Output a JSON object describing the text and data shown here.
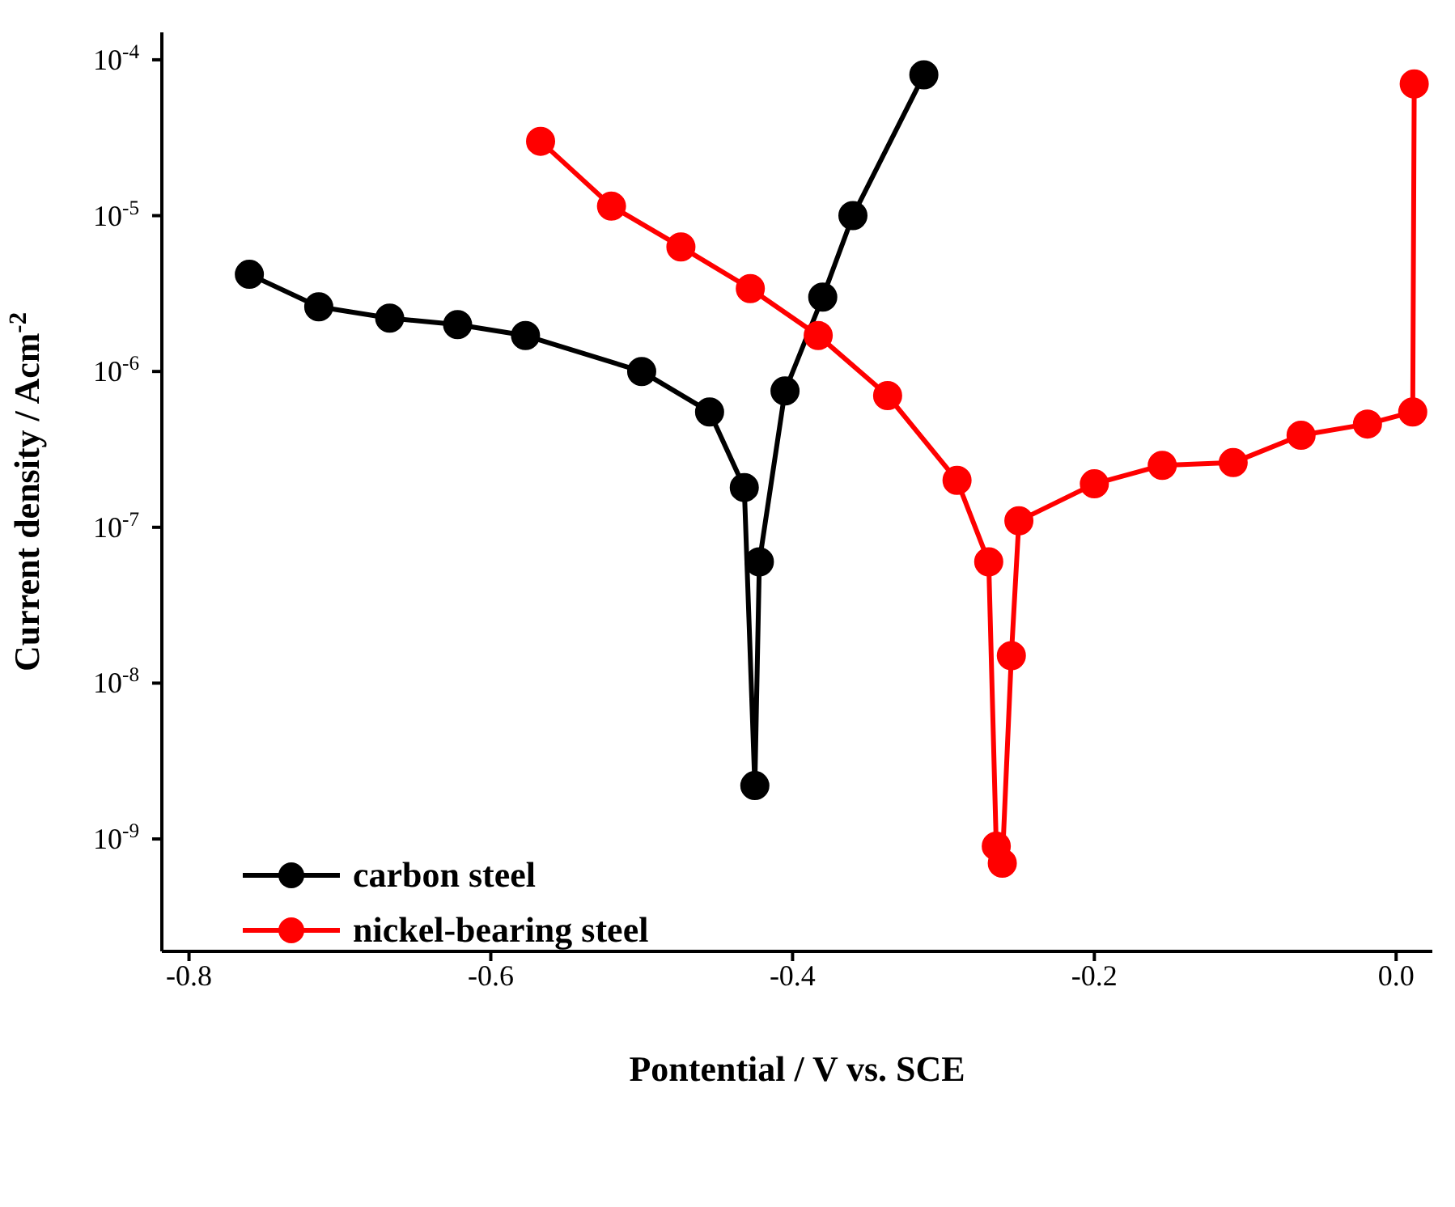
{
  "chart_data": {
    "type": "line",
    "xlabel": "Pontential / V vs. SCE",
    "ylabel": "Current density / Acm$^{-2}$",
    "log": "y",
    "marker": "circle",
    "legend": "bottom left",
    "xlim": [
      -0.818,
      0.024
    ],
    "xticks": [
      -0.8,
      -0.6,
      -0.4,
      -0.2,
      {
        "value": 0,
        "label": "0.0"
      }
    ],
    "ylim": [
      1.9e-10,
      0.00015
    ],
    "yticks": [
      {
        "value": 1e-09,
        "label": "10$^{-9}$"
      },
      {
        "value": 1e-08,
        "label": "10$^{-8}$"
      },
      {
        "value": 1e-07,
        "label": "10$^{-7}$"
      },
      {
        "value": 1e-06,
        "label": "10$^{-6}$"
      },
      {
        "value": 1e-05,
        "label": "10$^{-5}$"
      },
      {
        "value": 0.0001,
        "label": "10$^{-4}$"
      }
    ],
    "series": [
      {
        "name": "carbon steel",
        "color": "#000000",
        "x": [
          -0.76,
          -0.714,
          -0.667,
          -0.622,
          -0.577,
          -0.5,
          -0.455,
          -0.432,
          -0.425,
          -0.422,
          -0.405,
          -0.38,
          -0.36,
          -0.313
        ],
        "values": [
          4.2e-06,
          2.6e-06,
          2.2e-06,
          2e-06,
          1.7e-06,
          1e-06,
          5.5e-07,
          1.8e-07,
          2.2e-09,
          6e-08,
          7.5e-07,
          3e-06,
          1e-05,
          8e-05
        ]
      },
      {
        "name": "nickel-bearing steel",
        "color": "#ff0000",
        "x": [
          -0.567,
          -0.52,
          -0.474,
          -0.428,
          -0.383,
          -0.337,
          -0.291,
          -0.27,
          -0.265,
          -0.261,
          -0.255,
          -0.25,
          -0.2,
          -0.155,
          -0.108,
          -0.063,
          -0.019,
          0.011,
          0.012
        ],
        "values": [
          3e-05,
          1.15e-05,
          6.3e-06,
          3.4e-06,
          1.7e-06,
          7e-07,
          2e-07,
          6e-08,
          9e-10,
          7e-10,
          1.5e-08,
          1.1e-07,
          1.9e-07,
          2.5e-07,
          2.6e-07,
          3.9e-07,
          4.6e-07,
          5.5e-07,
          7e-05
        ]
      }
    ]
  }
}
